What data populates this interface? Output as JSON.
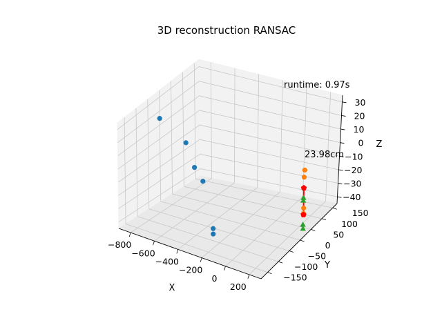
{
  "chart_data": {
    "type": "scatter",
    "projection": "3d",
    "title": "3D reconstruction RANSAC",
    "xlabel": "X",
    "ylabel": "Y",
    "zlabel": "Z",
    "xlim": [
      -900,
      300
    ],
    "ylim": [
      -180,
      170
    ],
    "zlim": [
      -45,
      35
    ],
    "x_ticks": [
      "−800",
      "−600",
      "−400",
      "−200",
      "0",
      "200"
    ],
    "y_ticks": [
      "−150",
      "−100",
      "−50",
      "0",
      "50",
      "100",
      "150"
    ],
    "z_ticks": [
      "−40",
      "−30",
      "−20",
      "−10",
      "0",
      "10",
      "20",
      "30"
    ],
    "grid": true,
    "annotations": {
      "runtime": "runtime: 0.97s",
      "distance": "23.98cm"
    },
    "series": [
      {
        "color": "#1f77b4",
        "marker": "circle",
        "points": [
          {
            "x": -820,
            "y": -40,
            "z": 25
          },
          {
            "x": -640,
            "y": -20,
            "z": 10
          },
          {
            "x": -610,
            "y": 0,
            "z": -10
          },
          {
            "x": -560,
            "y": 10,
            "z": -20
          },
          {
            "x": -160,
            "y": -150,
            "z": -25
          },
          {
            "x": -170,
            "y": -145,
            "z": -30
          }
        ]
      },
      {
        "color": "#ff7f0e",
        "marker": "circle",
        "points": [
          {
            "x": 215,
            "y": 55,
            "z": 8
          },
          {
            "x": 215,
            "y": 52,
            "z": 3
          },
          {
            "x": 215,
            "y": 48,
            "z": -20
          },
          {
            "x": 215,
            "y": 47,
            "z": -24
          }
        ]
      },
      {
        "color": "#2ca02c",
        "marker": "triangle",
        "points": [
          {
            "x": 215,
            "y": 48,
            "z": -12
          },
          {
            "x": 215,
            "y": 47,
            "z": -14
          },
          {
            "x": 215,
            "y": 44,
            "z": -32
          },
          {
            "x": 215,
            "y": 44,
            "z": -35
          }
        ]
      },
      {
        "color": "#ff0000",
        "marker": "pentagon",
        "points": [
          {
            "x": 215,
            "y": 50,
            "z": -5
          },
          {
            "x": 215,
            "y": 47,
            "z": -25
          }
        ]
      }
    ]
  }
}
